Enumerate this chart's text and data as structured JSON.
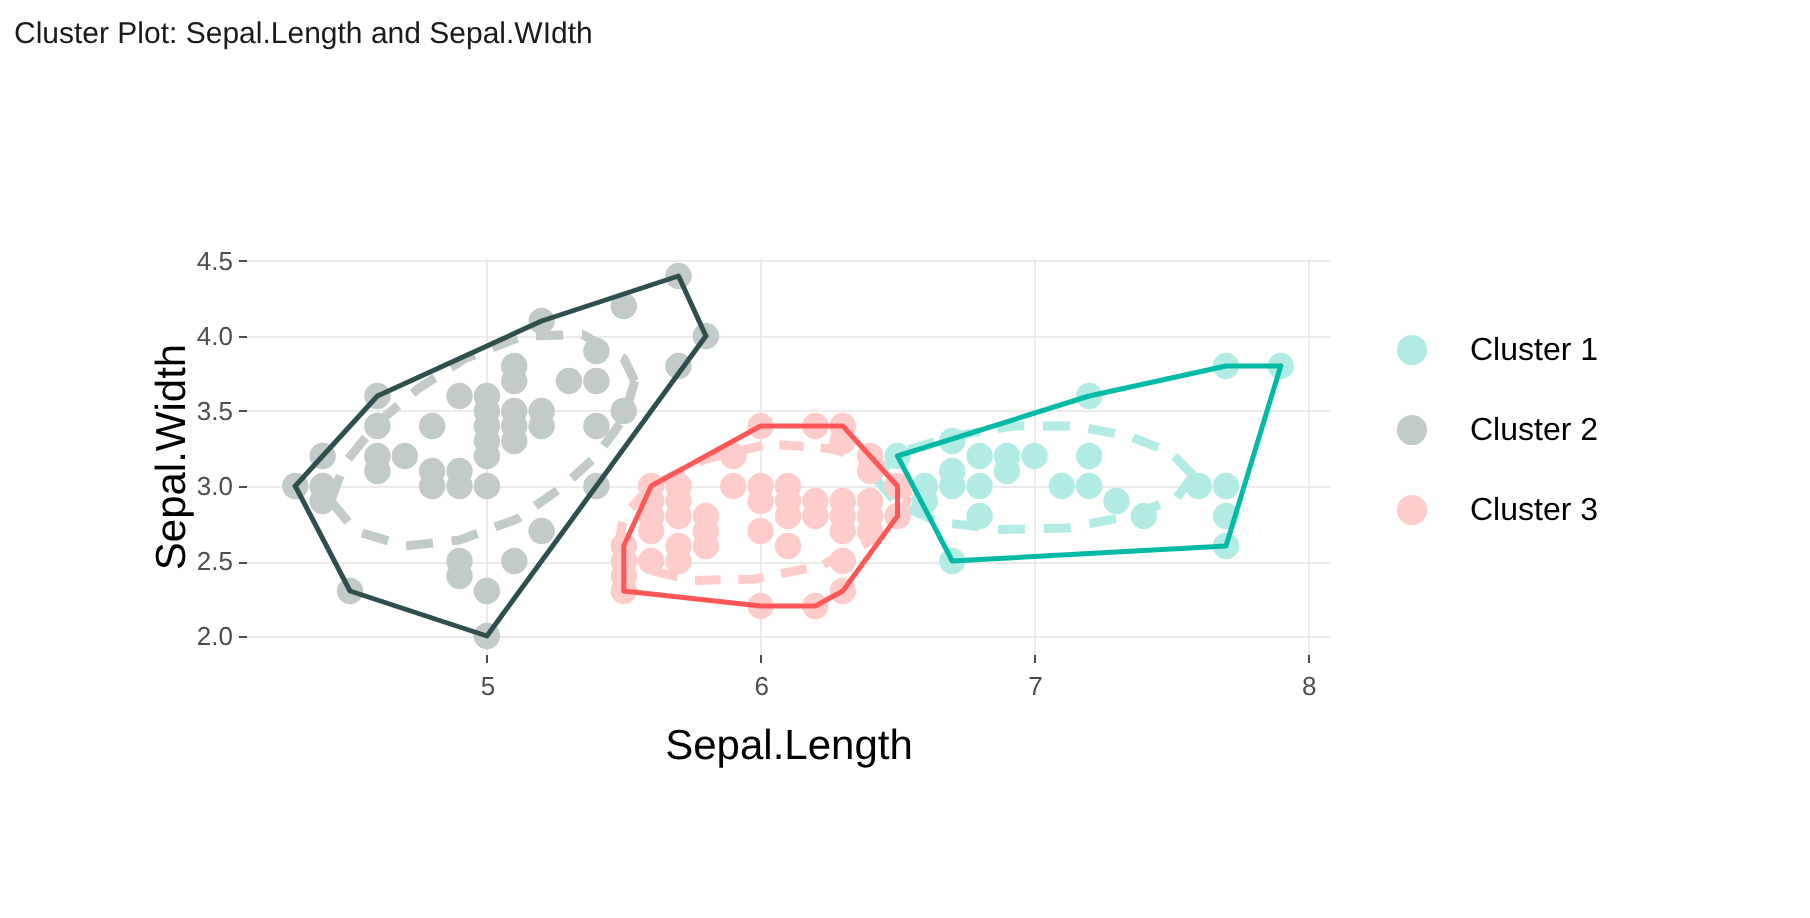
{
  "chart_data": {
    "type": "scatter",
    "title": "Cluster Plot: Sepal.Length and Sepal.WIdth",
    "xlabel": "Sepal.Length",
    "ylabel": "Sepal.Width",
    "xlim": [
      4.12,
      8.08
    ],
    "ylim": [
      1.88,
      4.52
    ],
    "xticks": [
      5,
      6,
      7,
      8
    ],
    "yticks": [
      {
        "value": 2,
        "label": "2.0"
      },
      2.5,
      {
        "value": 3,
        "label": "3.0"
      },
      3.5,
      {
        "value": 4,
        "label": "4.0"
      },
      4.5
    ],
    "grid": true,
    "legend": "right",
    "series": [
      {
        "type": "line",
        "line_style": "dashed",
        "color": "#b3ece4",
        "x": [
          6.42,
          6.5,
          6.7,
          6.92,
          7.15,
          7.35,
          7.5,
          7.58
        ],
        "values": [
          3.05,
          3.22,
          3.33,
          3.4,
          3.4,
          3.33,
          3.22,
          3.07
        ]
      },
      {
        "type": "line",
        "line_style": "dashed",
        "color": "#b3ece4",
        "x": [
          6.42,
          6.5,
          6.65,
          6.88,
          7.12,
          7.35,
          7.52,
          7.58
        ],
        "values": [
          3.05,
          2.88,
          2.76,
          2.71,
          2.72,
          2.8,
          2.92,
          3.07
        ]
      },
      {
        "type": "line",
        "line_style": "dashed",
        "color": "#c3caca",
        "x": [
          4.43,
          4.48,
          4.6,
          4.75,
          4.92,
          5.13,
          5.35,
          5.5,
          5.54
        ],
        "values": [
          2.9,
          3.15,
          3.42,
          3.65,
          3.85,
          4.0,
          4.01,
          3.85,
          3.7
        ]
      },
      {
        "type": "line",
        "line_style": "dashed",
        "color": "#c3caca",
        "x": [
          4.43,
          4.52,
          4.7,
          4.9,
          5.11,
          5.28,
          5.4,
          5.5,
          5.54
        ],
        "values": [
          2.9,
          2.7,
          2.6,
          2.64,
          2.78,
          3.0,
          3.2,
          3.45,
          3.7
        ]
      },
      {
        "type": "line",
        "line_style": "dashed",
        "color": "#ffcccc",
        "x": [
          5.48,
          5.5,
          5.6,
          5.8,
          6.03,
          6.25,
          6.42,
          6.52,
          6.54
        ],
        "values": [
          2.6,
          2.8,
          3.0,
          3.18,
          3.28,
          3.25,
          3.17,
          3.04,
          2.93
        ]
      },
      {
        "type": "line",
        "line_style": "dashed",
        "color": "#ffcccc",
        "x": [
          5.48,
          5.57,
          5.75,
          5.98,
          6.22,
          6.42,
          6.52,
          6.54
        ],
        "values": [
          2.6,
          2.45,
          2.37,
          2.38,
          2.47,
          2.65,
          2.83,
          2.93
        ]
      },
      {
        "name": "Cluster 1",
        "marker": "circle",
        "color": "#b3ece4",
        "x": [
          6.5,
          6.6,
          6.6,
          6.7,
          6.7,
          6.7,
          6.7,
          6.8,
          6.8,
          6.8,
          6.9,
          6.9,
          7.0,
          7.1,
          7.2,
          7.2,
          7.2,
          7.3,
          7.4,
          7.6,
          7.7,
          7.7,
          7.7,
          7.7,
          7.9
        ],
        "values": [
          3.2,
          2.9,
          3.0,
          2.5,
          3.0,
          3.1,
          3.3,
          2.8,
          3.0,
          3.2,
          3.1,
          3.2,
          3.2,
          3.0,
          3.0,
          3.2,
          3.6,
          2.9,
          2.8,
          3.0,
          2.6,
          2.8,
          3.0,
          3.8,
          3.8
        ]
      },
      {
        "name": "Cluster 2",
        "marker": "circle",
        "color": "#c3caca",
        "x": [
          4.3,
          4.4,
          4.4,
          4.4,
          4.5,
          4.6,
          4.6,
          4.6,
          4.6,
          4.7,
          4.8,
          4.8,
          4.8,
          4.9,
          4.9,
          4.9,
          4.9,
          4.9,
          5.0,
          5.0,
          5.0,
          5.0,
          5.0,
          5.0,
          5.0,
          5.0,
          5.1,
          5.1,
          5.1,
          5.1,
          5.1,
          5.1,
          5.2,
          5.2,
          5.2,
          5.2,
          5.3,
          5.4,
          5.4,
          5.4,
          5.4,
          5.5,
          5.5,
          5.7,
          5.7,
          5.8
        ],
        "values": [
          3.0,
          2.9,
          3.0,
          3.2,
          2.3,
          3.1,
          3.2,
          3.4,
          3.6,
          3.2,
          3.0,
          3.1,
          3.4,
          2.4,
          2.5,
          3.0,
          3.1,
          3.6,
          2.0,
          2.3,
          3.0,
          3.2,
          3.3,
          3.4,
          3.5,
          3.6,
          2.5,
          3.3,
          3.4,
          3.5,
          3.7,
          3.8,
          2.7,
          3.4,
          3.5,
          4.1,
          3.7,
          3.0,
          3.4,
          3.7,
          3.9,
          3.5,
          4.2,
          3.8,
          4.4,
          4.0
        ]
      },
      {
        "name": "Cluster 3",
        "marker": "circle",
        "color": "#ffcccc",
        "x": [
          5.5,
          5.5,
          5.5,
          5.5,
          5.6,
          5.6,
          5.6,
          5.6,
          5.6,
          5.7,
          5.7,
          5.7,
          5.7,
          5.7,
          5.8,
          5.8,
          5.8,
          5.9,
          5.9,
          6.0,
          6.0,
          6.0,
          6.0,
          6.0,
          6.1,
          6.1,
          6.1,
          6.1,
          6.2,
          6.2,
          6.2,
          6.2,
          6.3,
          6.3,
          6.3,
          6.3,
          6.3,
          6.3,
          6.3,
          6.4,
          6.4,
          6.4,
          6.4,
          6.4,
          6.5,
          6.5
        ],
        "values": [
          2.3,
          2.4,
          2.5,
          2.6,
          2.5,
          2.7,
          2.8,
          2.9,
          3.0,
          2.5,
          2.6,
          2.8,
          2.9,
          3.0,
          2.6,
          2.7,
          2.8,
          3.0,
          3.2,
          2.2,
          2.7,
          2.9,
          3.0,
          3.4,
          2.6,
          2.8,
          2.9,
          3.0,
          2.2,
          2.8,
          2.9,
          3.4,
          2.3,
          2.5,
          2.7,
          2.8,
          2.9,
          3.3,
          3.4,
          2.7,
          2.8,
          2.9,
          3.1,
          3.2,
          2.8,
          3.0
        ]
      },
      {
        "type": "line",
        "line_style": "solid",
        "color": "#00baa6",
        "x": [
          6.5,
          7.2,
          7.7,
          7.9
        ],
        "values": [
          3.2,
          3.6,
          3.8,
          3.8
        ]
      },
      {
        "type": "line",
        "line_style": "solid",
        "color": "#00baa6",
        "x": [
          6.5,
          6.7,
          7.7,
          7.9
        ],
        "values": [
          3.2,
          2.5,
          2.6,
          3.8
        ]
      },
      {
        "type": "line",
        "line_style": "solid",
        "color": "#2f4f4f",
        "x": [
          4.3,
          4.6,
          5.2,
          5.7,
          5.8
        ],
        "values": [
          3.0,
          3.6,
          4.1,
          4.4,
          4.0
        ]
      },
      {
        "type": "line",
        "line_style": "solid",
        "color": "#2f4f4f",
        "x": [
          4.3,
          4.5,
          5.0,
          5.8
        ],
        "values": [
          3.0,
          2.3,
          2.0,
          4.0
        ]
      },
      {
        "type": "line",
        "line_style": "solid",
        "color": "#ff5757",
        "x": [
          5.5,
          5.5,
          5.6,
          6.0,
          6.3,
          6.5,
          6.5
        ],
        "values": [
          2.3,
          2.6,
          3.0,
          3.4,
          3.4,
          3.0,
          2.8
        ]
      },
      {
        "type": "line",
        "line_style": "solid",
        "color": "#ff5757",
        "x": [
          5.5,
          6.0,
          6.2,
          6.3,
          6.5
        ],
        "values": [
          2.3,
          2.2,
          2.2,
          2.3,
          2.8
        ]
      }
    ]
  }
}
